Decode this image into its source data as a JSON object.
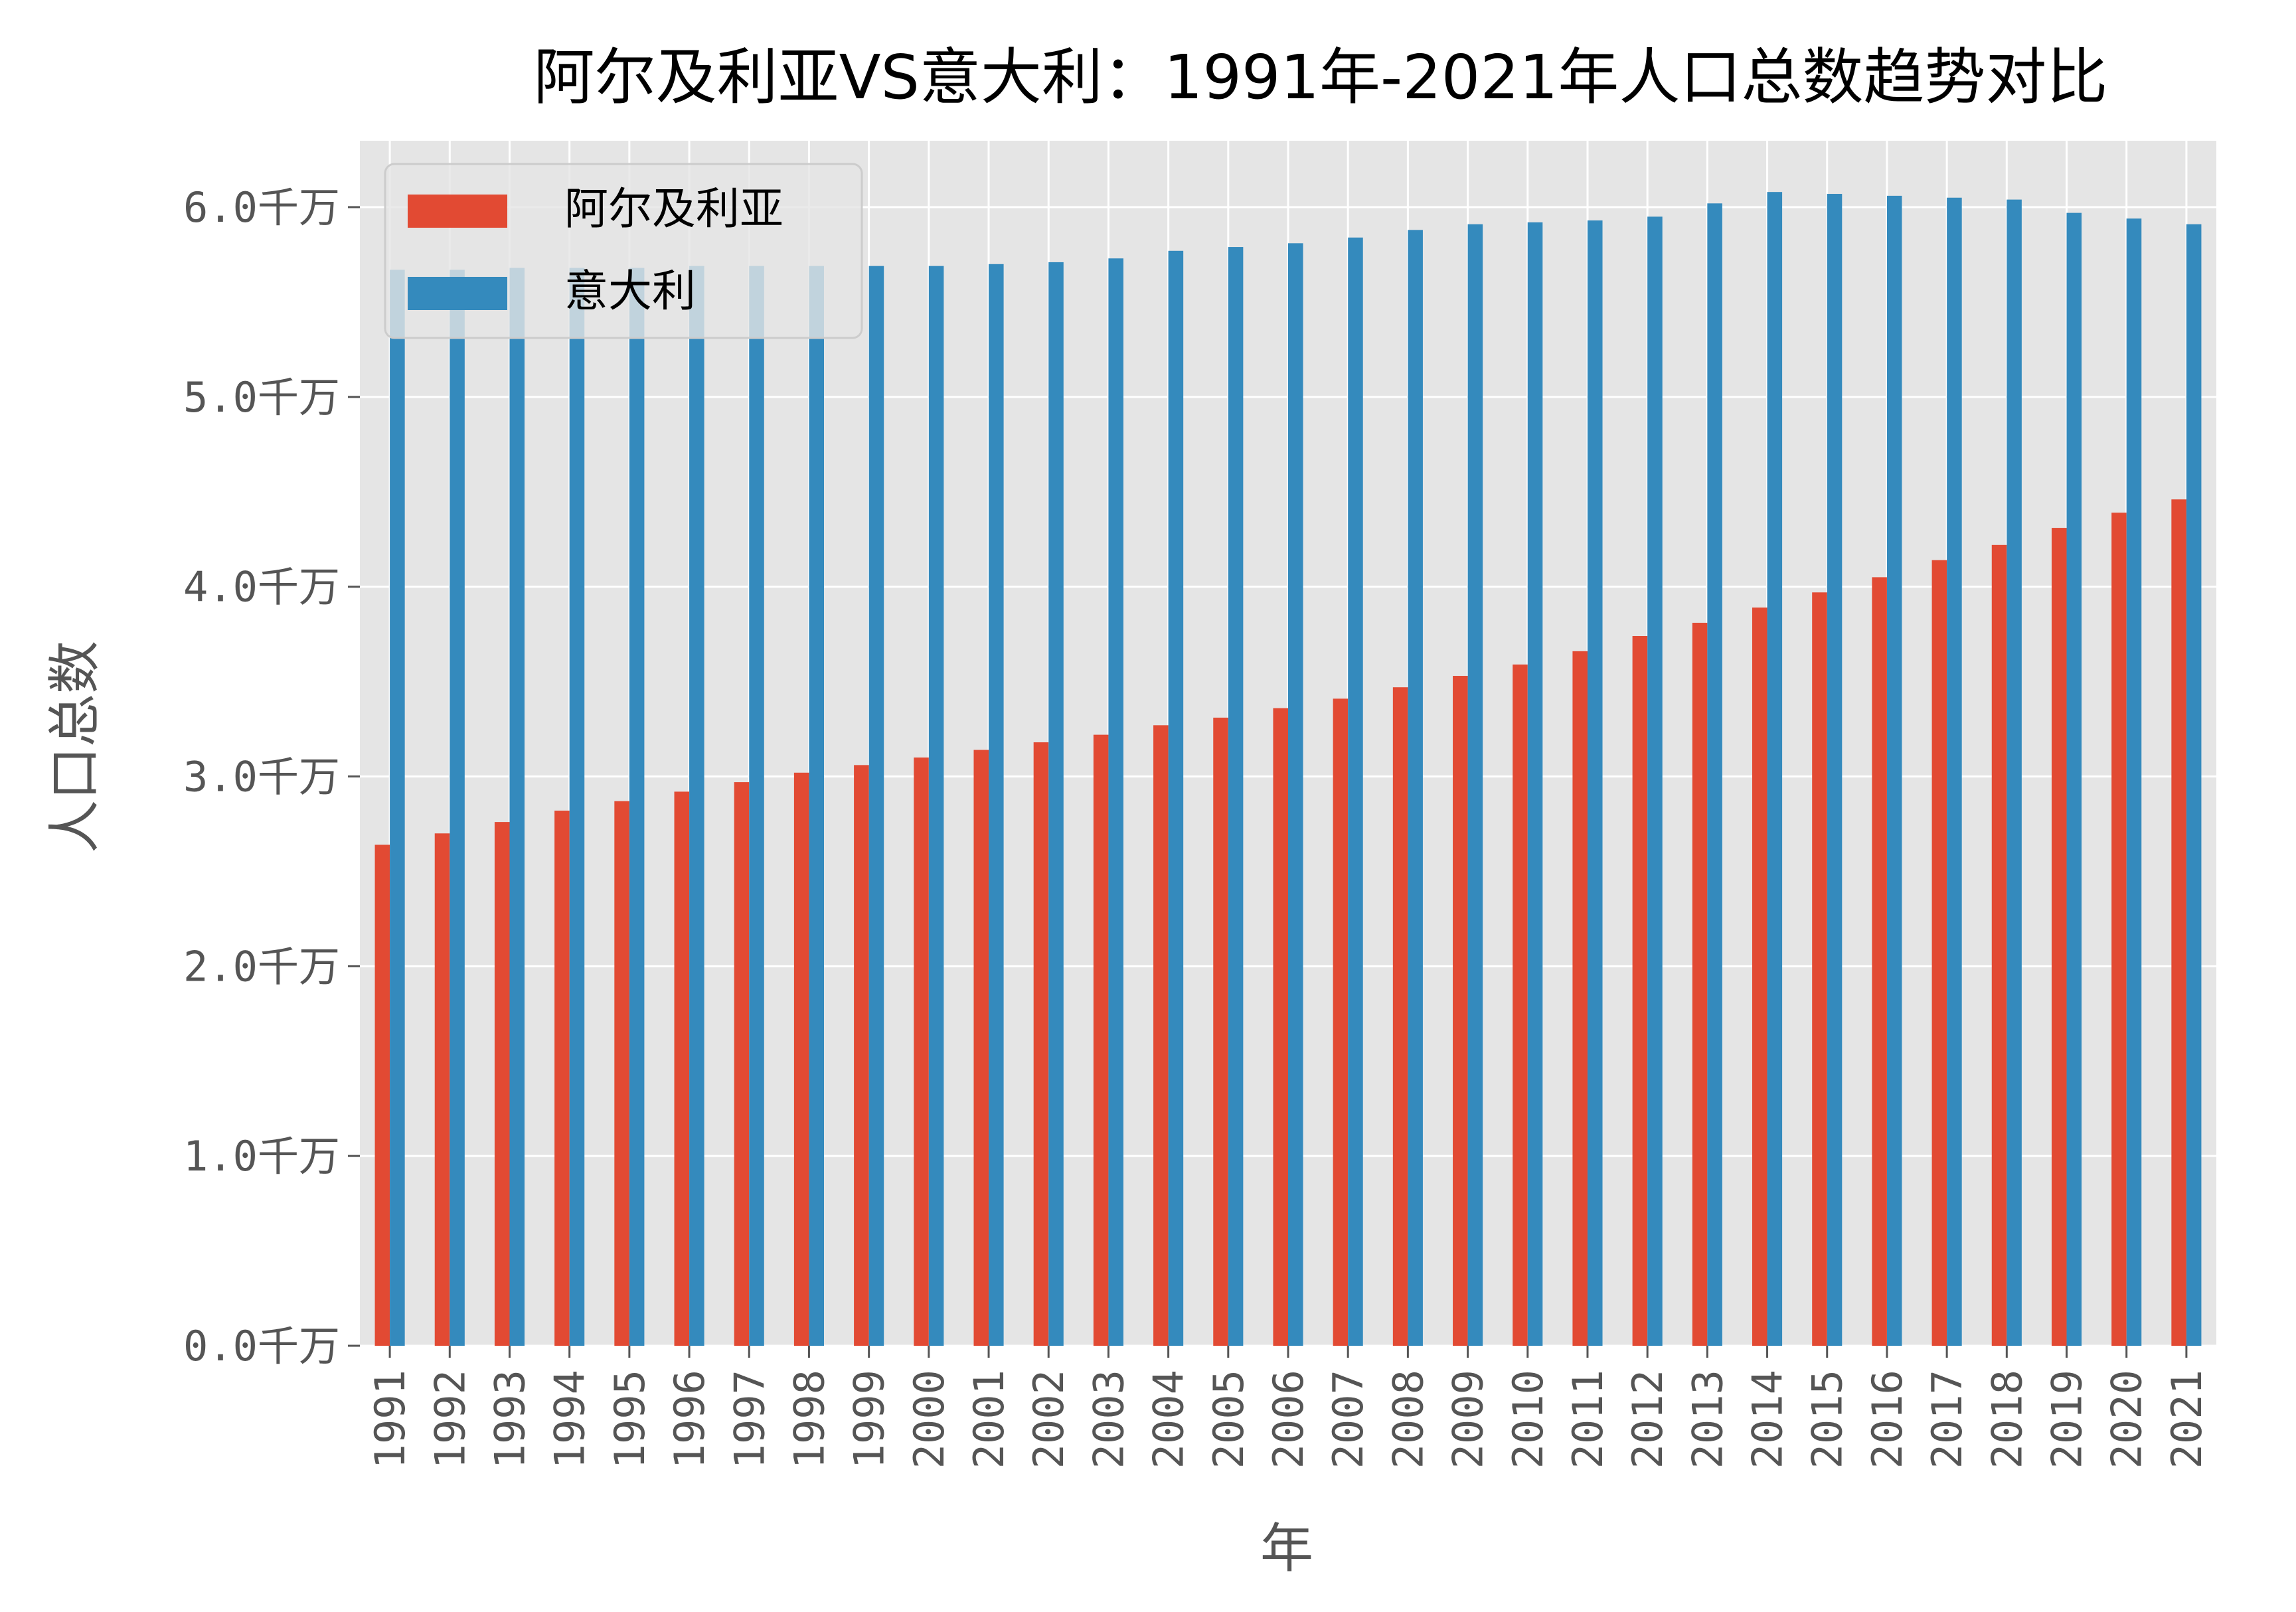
{
  "chart_data": {
    "type": "bar",
    "title": "阿尔及利亚VS意大利：1991年-2021年人口总数趋势对比",
    "xlabel": "年",
    "ylabel": "人口总数",
    "ylim": [
      0,
      6.35
    ],
    "yticks": [
      0,
      1,
      2,
      3,
      4,
      5,
      6
    ],
    "ytick_labels": [
      "0.0千万",
      "1.0千万",
      "2.0千万",
      "3.0千万",
      "4.0千万",
      "5.0千万",
      "6.0千万"
    ],
    "grid": true,
    "legend_position": "top-left",
    "categories": [
      "1991",
      "1992",
      "1993",
      "1994",
      "1995",
      "1996",
      "1997",
      "1998",
      "1999",
      "2000",
      "2001",
      "2002",
      "2003",
      "2004",
      "2005",
      "2006",
      "2007",
      "2008",
      "2009",
      "2010",
      "2011",
      "2012",
      "2013",
      "2014",
      "2015",
      "2016",
      "2017",
      "2018",
      "2019",
      "2020",
      "2021"
    ],
    "series": [
      {
        "name": "阿尔及利亚",
        "color": "#E24A33",
        "values": [
          2.64,
          2.7,
          2.76,
          2.82,
          2.87,
          2.92,
          2.97,
          3.02,
          3.06,
          3.1,
          3.14,
          3.18,
          3.22,
          3.27,
          3.31,
          3.36,
          3.41,
          3.47,
          3.53,
          3.59,
          3.66,
          3.74,
          3.81,
          3.89,
          3.97,
          4.05,
          4.14,
          4.22,
          4.31,
          4.39,
          4.46
        ]
      },
      {
        "name": "意大利",
        "color": "#348ABD",
        "values": [
          5.67,
          5.67,
          5.68,
          5.68,
          5.68,
          5.69,
          5.69,
          5.69,
          5.69,
          5.69,
          5.7,
          5.71,
          5.73,
          5.77,
          5.79,
          5.81,
          5.84,
          5.88,
          5.91,
          5.92,
          5.93,
          5.95,
          6.02,
          6.08,
          6.07,
          6.06,
          6.05,
          6.04,
          5.97,
          5.94,
          5.91
        ]
      }
    ]
  }
}
